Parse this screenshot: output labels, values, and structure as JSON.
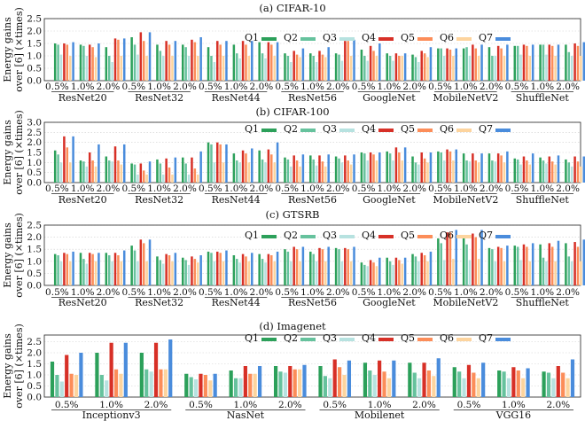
{
  "figure": {
    "ylabel_line1": "Energy gains",
    "ylabel_line2": "over [6] (×times)",
    "legend": [
      "Q1",
      "Q2",
      "Q3",
      "Q4",
      "Q5",
      "Q6",
      "Q7"
    ],
    "colors": [
      "#2ca05a",
      "#66c29d",
      "#b7e2e0",
      "#d73027",
      "#fc8d59",
      "#fdd49e",
      "#4a8cdc"
    ]
  },
  "chart_data": [
    {
      "type": "bar",
      "title": "(a) CIFAR-10",
      "ylim": [
        0,
        2.5
      ],
      "yticks": [
        0,
        0.5,
        1,
        1.5,
        2,
        2.5
      ],
      "groups": [
        "ResNet20",
        "ResNet32",
        "ResNet44",
        "ResNet56",
        "GoogleNet",
        "MobileNetV2",
        "ShuffleNet"
      ],
      "categories": [
        "0.5%",
        "1.0%",
        "2.0%"
      ],
      "values": [
        [
          [
            1.5,
            1.45,
            1.05,
            1.5,
            1.45,
            1.0,
            1.55
          ],
          [
            1.45,
            1.4,
            1.0,
            1.45,
            1.35,
            0.95,
            1.5
          ],
          [
            1.35,
            1.0,
            0.75,
            1.7,
            1.65,
            1.0,
            1.7
          ]
        ],
        [
          [
            1.75,
            1.45,
            1.05,
            1.95,
            1.6,
            1.0,
            1.95
          ],
          [
            1.45,
            1.2,
            1.0,
            1.6,
            1.45,
            1.0,
            1.6
          ],
          [
            1.45,
            1.35,
            1.0,
            1.65,
            1.55,
            1.0,
            1.75
          ]
        ],
        [
          [
            1.35,
            1.0,
            0.75,
            1.6,
            1.45,
            1.0,
            1.6
          ],
          [
            1.45,
            1.1,
            0.9,
            1.6,
            1.45,
            1.0,
            1.6
          ],
          [
            1.55,
            1.1,
            0.9,
            1.55,
            1.45,
            1.0,
            1.55
          ]
        ],
        [
          [
            1.1,
            1.0,
            0.75,
            1.2,
            1.05,
            0.95,
            1.3
          ],
          [
            1.1,
            1.0,
            0.75,
            1.2,
            1.05,
            0.95,
            1.35
          ],
          [
            1.1,
            1.05,
            0.8,
            1.6,
            1.6,
            1.0,
            1.65
          ]
        ],
        [
          [
            1.25,
            1.0,
            0.8,
            1.4,
            1.2,
            1.0,
            1.5
          ],
          [
            1.1,
            1.0,
            0.8,
            1.1,
            1.0,
            1.0,
            1.1
          ],
          [
            1.05,
            0.95,
            0.75,
            1.2,
            1.1,
            0.95,
            1.35
          ]
        ],
        [
          [
            1.3,
            1.3,
            1.0,
            1.3,
            1.25,
            1.0,
            1.3
          ],
          [
            1.3,
            1.35,
            1.0,
            1.45,
            1.3,
            1.0,
            1.45
          ],
          [
            1.35,
            1.0,
            1.0,
            1.4,
            1.3,
            1.0,
            1.45
          ]
        ],
        [
          [
            1.4,
            1.4,
            1.05,
            1.45,
            1.4,
            1.0,
            1.45
          ],
          [
            1.45,
            1.45,
            1.05,
            1.45,
            1.4,
            1.0,
            1.45
          ],
          [
            1.45,
            1.15,
            1.0,
            1.5,
            1.4,
            1.0,
            1.55
          ]
        ]
      ]
    },
    {
      "type": "bar",
      "title": "(b) CIFAR-100",
      "ylim": [
        0,
        3.0
      ],
      "yticks": [
        0,
        0.5,
        1,
        1.5,
        2,
        2.5,
        3
      ],
      "groups": [
        "ResNet20",
        "ResNet32",
        "ResNet44",
        "ResNet56",
        "GoogleNet",
        "MobileNetV2",
        "ShuffleNet"
      ],
      "categories": [
        "0.5%",
        "1.0%",
        "2.0%"
      ],
      "values": [
        [
          [
            1.6,
            1.4,
            1.0,
            2.3,
            1.75,
            1.0,
            2.3
          ],
          [
            1.1,
            1.05,
            0.8,
            1.5,
            1.1,
            0.8,
            1.9
          ],
          [
            1.3,
            1.1,
            1.05,
            1.8,
            1.1,
            0.9,
            1.9
          ]
        ],
        [
          [
            0.95,
            0.9,
            0.4,
            0.95,
            0.6,
            0.4,
            1.05
          ],
          [
            1.15,
            0.95,
            0.4,
            1.2,
            0.75,
            0.4,
            1.25
          ],
          [
            1.25,
            0.95,
            0.4,
            1.25,
            0.7,
            0.4,
            1.55
          ]
        ],
        [
          [
            2.0,
            1.9,
            1.0,
            2.0,
            1.9,
            1.0,
            1.9
          ],
          [
            1.45,
            1.1,
            1.0,
            1.6,
            1.45,
            1.0,
            1.7
          ],
          [
            1.6,
            1.15,
            1.0,
            1.65,
            1.4,
            1.0,
            2.0
          ]
        ],
        [
          [
            1.25,
            1.15,
            0.8,
            1.35,
            1.1,
            0.8,
            1.4
          ],
          [
            1.35,
            1.15,
            0.85,
            1.35,
            1.05,
            0.8,
            1.4
          ],
          [
            1.3,
            1.2,
            1.0,
            1.35,
            1.1,
            0.9,
            1.4
          ]
        ],
        [
          [
            1.5,
            1.45,
            1.1,
            1.5,
            1.4,
            1.1,
            1.5
          ],
          [
            1.55,
            1.45,
            1.1,
            1.75,
            1.5,
            1.1,
            1.75
          ],
          [
            1.3,
            1.0,
            0.9,
            1.5,
            1.2,
            1.0,
            1.5
          ]
        ],
        [
          [
            1.55,
            1.5,
            1.1,
            1.65,
            1.55,
            1.1,
            1.65
          ],
          [
            1.45,
            1.1,
            1.05,
            1.45,
            1.1,
            1.0,
            1.45
          ],
          [
            1.45,
            1.1,
            1.05,
            1.45,
            1.35,
            1.0,
            1.55
          ]
        ],
        [
          [
            1.2,
            1.15,
            0.9,
            1.3,
            1.1,
            0.9,
            1.45
          ],
          [
            1.25,
            1.1,
            0.95,
            1.3,
            1.05,
            0.9,
            1.35
          ],
          [
            1.15,
            1.0,
            0.8,
            1.3,
            1.05,
            0.8,
            1.3
          ]
        ]
      ]
    },
    {
      "type": "bar",
      "title": "(c) GTSRB",
      "ylim": [
        0,
        2.5
      ],
      "yticks": [
        0,
        0.5,
        1,
        1.5,
        2,
        2.5
      ],
      "groups": [
        "ResNet20",
        "ResNet32",
        "ResNet44",
        "ResNet56",
        "GoogleNet",
        "MobileNetV2",
        "ShuffleNet"
      ],
      "categories": [
        "0.5%",
        "1.0%",
        "2.0%"
      ],
      "values": [
        [
          [
            1.3,
            1.25,
            1.0,
            1.35,
            1.3,
            1.0,
            1.4
          ],
          [
            1.35,
            1.1,
            0.9,
            1.35,
            1.3,
            1.0,
            1.35
          ],
          [
            1.35,
            1.25,
            1.0,
            1.35,
            1.25,
            1.0,
            1.45
          ]
        ],
        [
          [
            1.65,
            1.45,
            1.0,
            1.9,
            1.75,
            1.0,
            1.9
          ],
          [
            1.2,
            1.05,
            0.9,
            1.3,
            1.25,
            1.0,
            1.35
          ],
          [
            1.15,
            1.05,
            0.85,
            1.2,
            1.1,
            0.95,
            1.25
          ]
        ],
        [
          [
            1.4,
            1.35,
            1.0,
            1.4,
            1.35,
            1.0,
            1.45
          ],
          [
            1.25,
            1.1,
            0.95,
            1.3,
            1.2,
            1.0,
            1.35
          ],
          [
            1.3,
            1.1,
            0.95,
            1.3,
            1.25,
            1.0,
            1.4
          ]
        ],
        [
          [
            1.5,
            1.4,
            1.0,
            1.6,
            1.5,
            1.0,
            1.6
          ],
          [
            1.4,
            1.3,
            1.0,
            1.55,
            1.5,
            1.0,
            1.6
          ],
          [
            1.55,
            1.5,
            1.0,
            1.55,
            1.5,
            1.0,
            1.6
          ]
        ],
        [
          [
            0.95,
            0.85,
            0.8,
            1.05,
            0.95,
            0.8,
            1.15
          ],
          [
            1.15,
            1.0,
            0.85,
            1.15,
            1.05,
            0.9,
            1.15
          ],
          [
            1.3,
            1.2,
            1.0,
            1.35,
            1.25,
            1.0,
            1.4
          ]
        ],
        [
          [
            1.95,
            1.75,
            1.05,
            2.2,
            2.2,
            1.1,
            2.3
          ],
          [
            1.95,
            1.7,
            1.05,
            2.15,
            2.0,
            1.1,
            2.3
          ],
          [
            1.55,
            1.5,
            1.0,
            1.6,
            1.55,
            1.0,
            1.65
          ]
        ],
        [
          [
            1.65,
            1.6,
            1.05,
            1.7,
            1.6,
            1.0,
            1.75
          ],
          [
            1.7,
            1.15,
            1.0,
            1.75,
            1.6,
            1.0,
            1.85
          ],
          [
            1.75,
            1.2,
            1.0,
            1.8,
            1.6,
            1.0,
            1.9
          ]
        ]
      ]
    },
    {
      "type": "bar",
      "title": "(d) Imagenet",
      "ylim": [
        0,
        2.8
      ],
      "yticks": [
        0,
        0.5,
        1,
        1.5,
        2,
        2.5
      ],
      "groups": [
        "Inceptionv3",
        "NasNet",
        "Mobilenet",
        "VGG16"
      ],
      "categories": [
        "0.5%",
        "1.0%",
        "2.0%"
      ],
      "values": [
        [
          [
            1.6,
            1.0,
            0.7,
            1.9,
            1.05,
            1.0,
            2.0
          ],
          [
            2.0,
            1.0,
            0.75,
            2.45,
            1.25,
            1.05,
            2.45
          ],
          [
            2.0,
            1.25,
            1.15,
            2.45,
            1.25,
            1.25,
            2.6
          ]
        ],
        [
          [
            1.05,
            0.9,
            0.8,
            1.05,
            1.0,
            0.75,
            1.05
          ],
          [
            1.2,
            0.85,
            0.85,
            1.4,
            1.05,
            1.05,
            1.4
          ],
          [
            1.4,
            1.15,
            1.1,
            1.4,
            1.25,
            1.25,
            1.45
          ]
        ],
        [
          [
            1.4,
            0.95,
            0.85,
            1.7,
            1.35,
            1.0,
            1.65
          ],
          [
            1.55,
            1.2,
            1.0,
            1.65,
            1.15,
            0.85,
            1.65
          ],
          [
            1.55,
            1.1,
            0.85,
            1.55,
            1.2,
            0.95,
            1.75
          ]
        ],
        [
          [
            1.35,
            1.15,
            0.85,
            1.45,
            1.1,
            0.85,
            1.55
          ],
          [
            1.2,
            1.15,
            0.85,
            1.35,
            1.2,
            0.85,
            1.3
          ],
          [
            1.15,
            1.1,
            0.85,
            1.4,
            1.1,
            0.85,
            1.7
          ]
        ]
      ]
    }
  ]
}
